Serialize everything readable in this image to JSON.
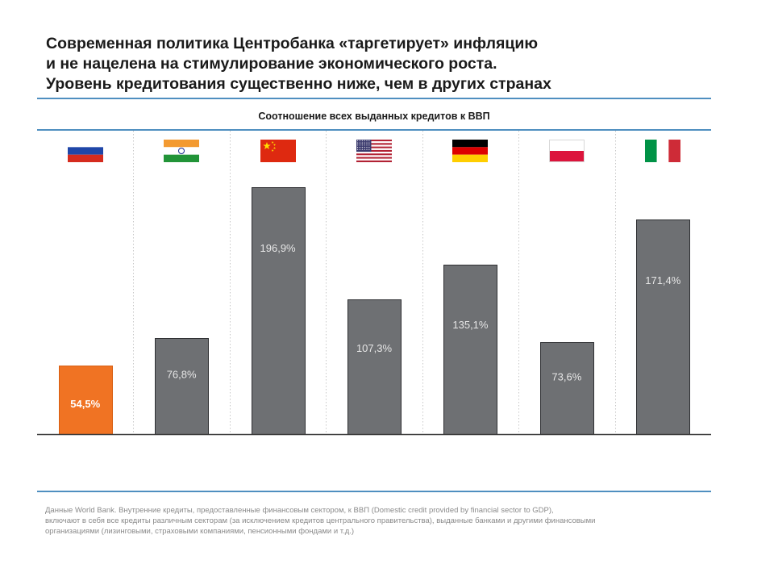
{
  "header": {
    "title_lines": [
      "Современная политика Центробанка «таргетирует» инфляцию",
      "и не нацелена на стимулирование экономического роста.",
      "Уровень кредитования существенно ниже, чем в других странах"
    ]
  },
  "chart_data": {
    "type": "bar",
    "title": "Соотношение всех выданных кредитов к ВВП",
    "categories": [
      "Russia",
      "India",
      "China",
      "USA",
      "Germany",
      "Poland",
      "Italy"
    ],
    "flags": [
      "russia-flag",
      "india-flag",
      "china-flag",
      "usa-flag",
      "germany-flag",
      "poland-flag",
      "italy-flag"
    ],
    "values": [
      54.5,
      76.8,
      196.9,
      107.3,
      135.1,
      73.6,
      171.4
    ],
    "labels": [
      "54,5%",
      "76,8%",
      "196,9%",
      "107,3%",
      "135,1%",
      "73,6%",
      "171,4%"
    ],
    "unit": "%",
    "xlabel": "",
    "ylabel": "",
    "grid": false,
    "legend": "none",
    "colors": {
      "highlight": "#f07323",
      "bar": "#6e7073",
      "bar_stroke": "#2f3033",
      "label_highlight": "#ffffff",
      "label": "#e6e6e6"
    }
  },
  "footnote": {
    "lines": [
      "Данные World Bank. Внутренние кредиты, предоставленные финансовым сектором, к ВВП (Domestic credit provided by financial sector to GDP),",
      "включают в себя все кредиты различным секторам (за исключением кредитов центрального правительства), выданные банками и другими финансовыми",
      "организациями (лизинговыми, страховыми компаниями, пенсионными фондами и т.д.)"
    ]
  },
  "colors": {
    "rule": "#4f8fc0",
    "separator": "#c8c8c8"
  }
}
